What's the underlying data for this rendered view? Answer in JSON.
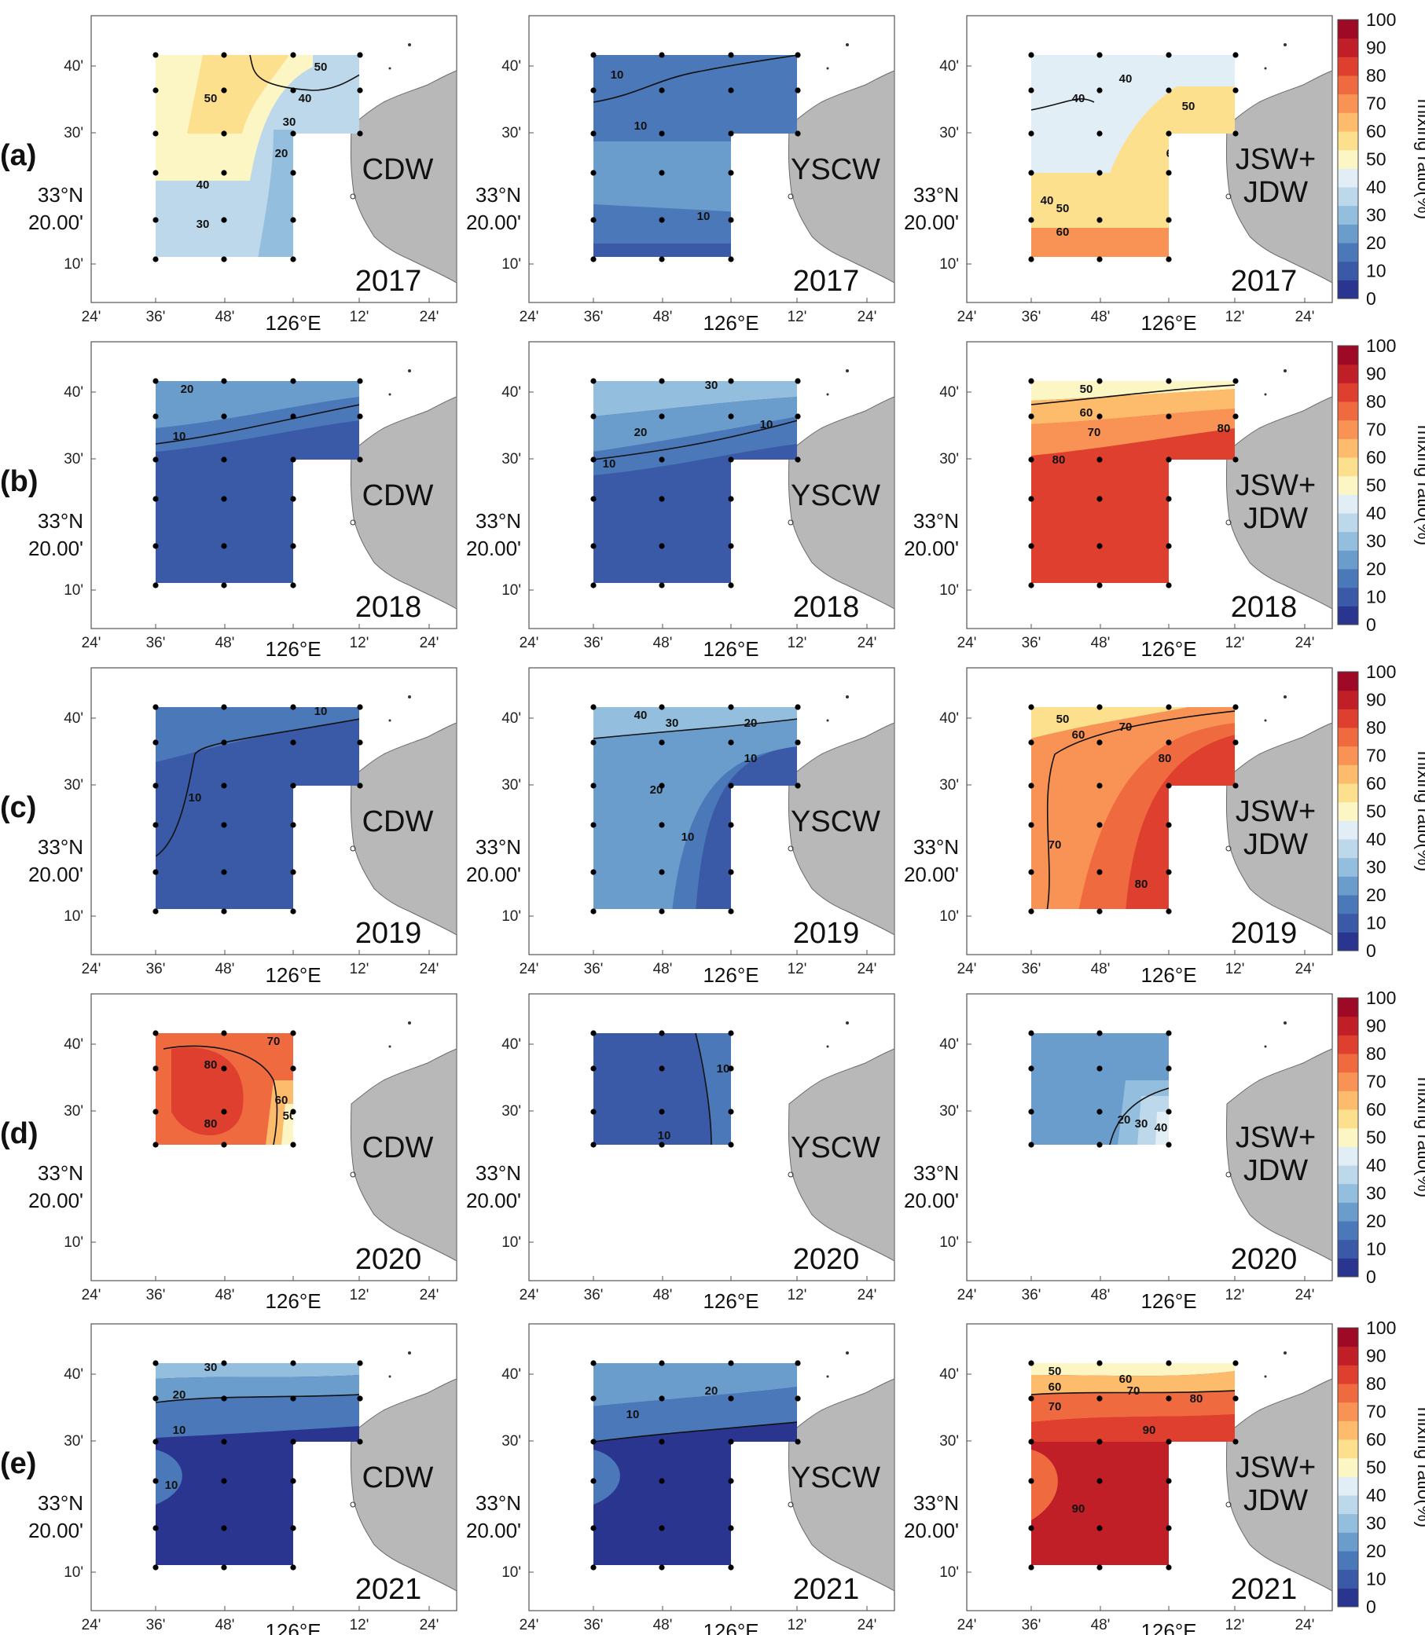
{
  "figure": {
    "colorbar": {
      "title": "mixing ratio(%)",
      "ticks": [
        "100",
        "90",
        "80",
        "70",
        "60",
        "50",
        "40",
        "30",
        "20",
        "10",
        "0"
      ],
      "colors": [
        "#2a3590",
        "#3a5aa8",
        "#4a78b8",
        "#6a9ccc",
        "#94bedd",
        "#bcd8ea",
        "#e2eef5",
        "#fbf6c4",
        "#fde08e",
        "#fdbb6c",
        "#f99355",
        "#f06a40",
        "#de3f2f",
        "#c01f27",
        "#9e0a26"
      ]
    },
    "axes": {
      "x_ticks": [
        "24'",
        "36'",
        "48'",
        "126°E",
        "12'",
        "24'"
      ],
      "y_ticks": [
        "40'",
        "30'",
        "10'"
      ],
      "lat_label_1": "33°N",
      "lat_label_2": "20.00'"
    },
    "rows": [
      {
        "label": "(a)",
        "year": "2017",
        "panels": [
          {
            "water": "CDW",
            "contours": [
              "50",
              "50",
              "40",
              "30",
              "20",
              "40",
              "30"
            ]
          },
          {
            "water": "YSCW",
            "contours": [
              "10",
              "10",
              "10"
            ]
          },
          {
            "water": "JSW+\nJDW",
            "contours": [
              "40",
              "40",
              "50",
              "60",
              "40",
              "50",
              "60"
            ]
          }
        ]
      },
      {
        "label": "(b)",
        "year": "2018",
        "panels": [
          {
            "water": "CDW",
            "contours": [
              "20",
              "10"
            ]
          },
          {
            "water": "YSCW",
            "contours": [
              "30",
              "20",
              "10",
              "10"
            ]
          },
          {
            "water": "JSW+\nJDW",
            "contours": [
              "50",
              "60",
              "70",
              "80",
              "80"
            ]
          }
        ]
      },
      {
        "label": "(c)",
        "year": "2019",
        "panels": [
          {
            "water": "CDW",
            "contours": [
              "10",
              "10"
            ]
          },
          {
            "water": "YSCW",
            "contours": [
              "40",
              "30",
              "20",
              "20",
              "10",
              "10"
            ]
          },
          {
            "water": "JSW+\nJDW",
            "contours": [
              "50",
              "60",
              "70",
              "80",
              "70",
              "80"
            ]
          }
        ]
      },
      {
        "label": "(d)",
        "year": "2020",
        "panels": [
          {
            "water": "CDW",
            "contours": [
              "70",
              "80",
              "80",
              "60",
              "50"
            ]
          },
          {
            "water": "YSCW",
            "contours": [
              "10",
              "10"
            ]
          },
          {
            "water": "JSW+\nJDW",
            "contours": [
              "20",
              "30",
              "40"
            ]
          }
        ]
      },
      {
        "label": "(e)",
        "year": "2021",
        "panels": [
          {
            "water": "CDW",
            "contours": [
              "30",
              "20",
              "10",
              "10"
            ]
          },
          {
            "water": "YSCW",
            "contours": [
              "20",
              "10"
            ]
          },
          {
            "water": "JSW+\nJDW",
            "contours": [
              "50",
              "60",
              "60",
              "70",
              "70",
              "80",
              "90",
              "90"
            ]
          }
        ]
      }
    ]
  }
}
